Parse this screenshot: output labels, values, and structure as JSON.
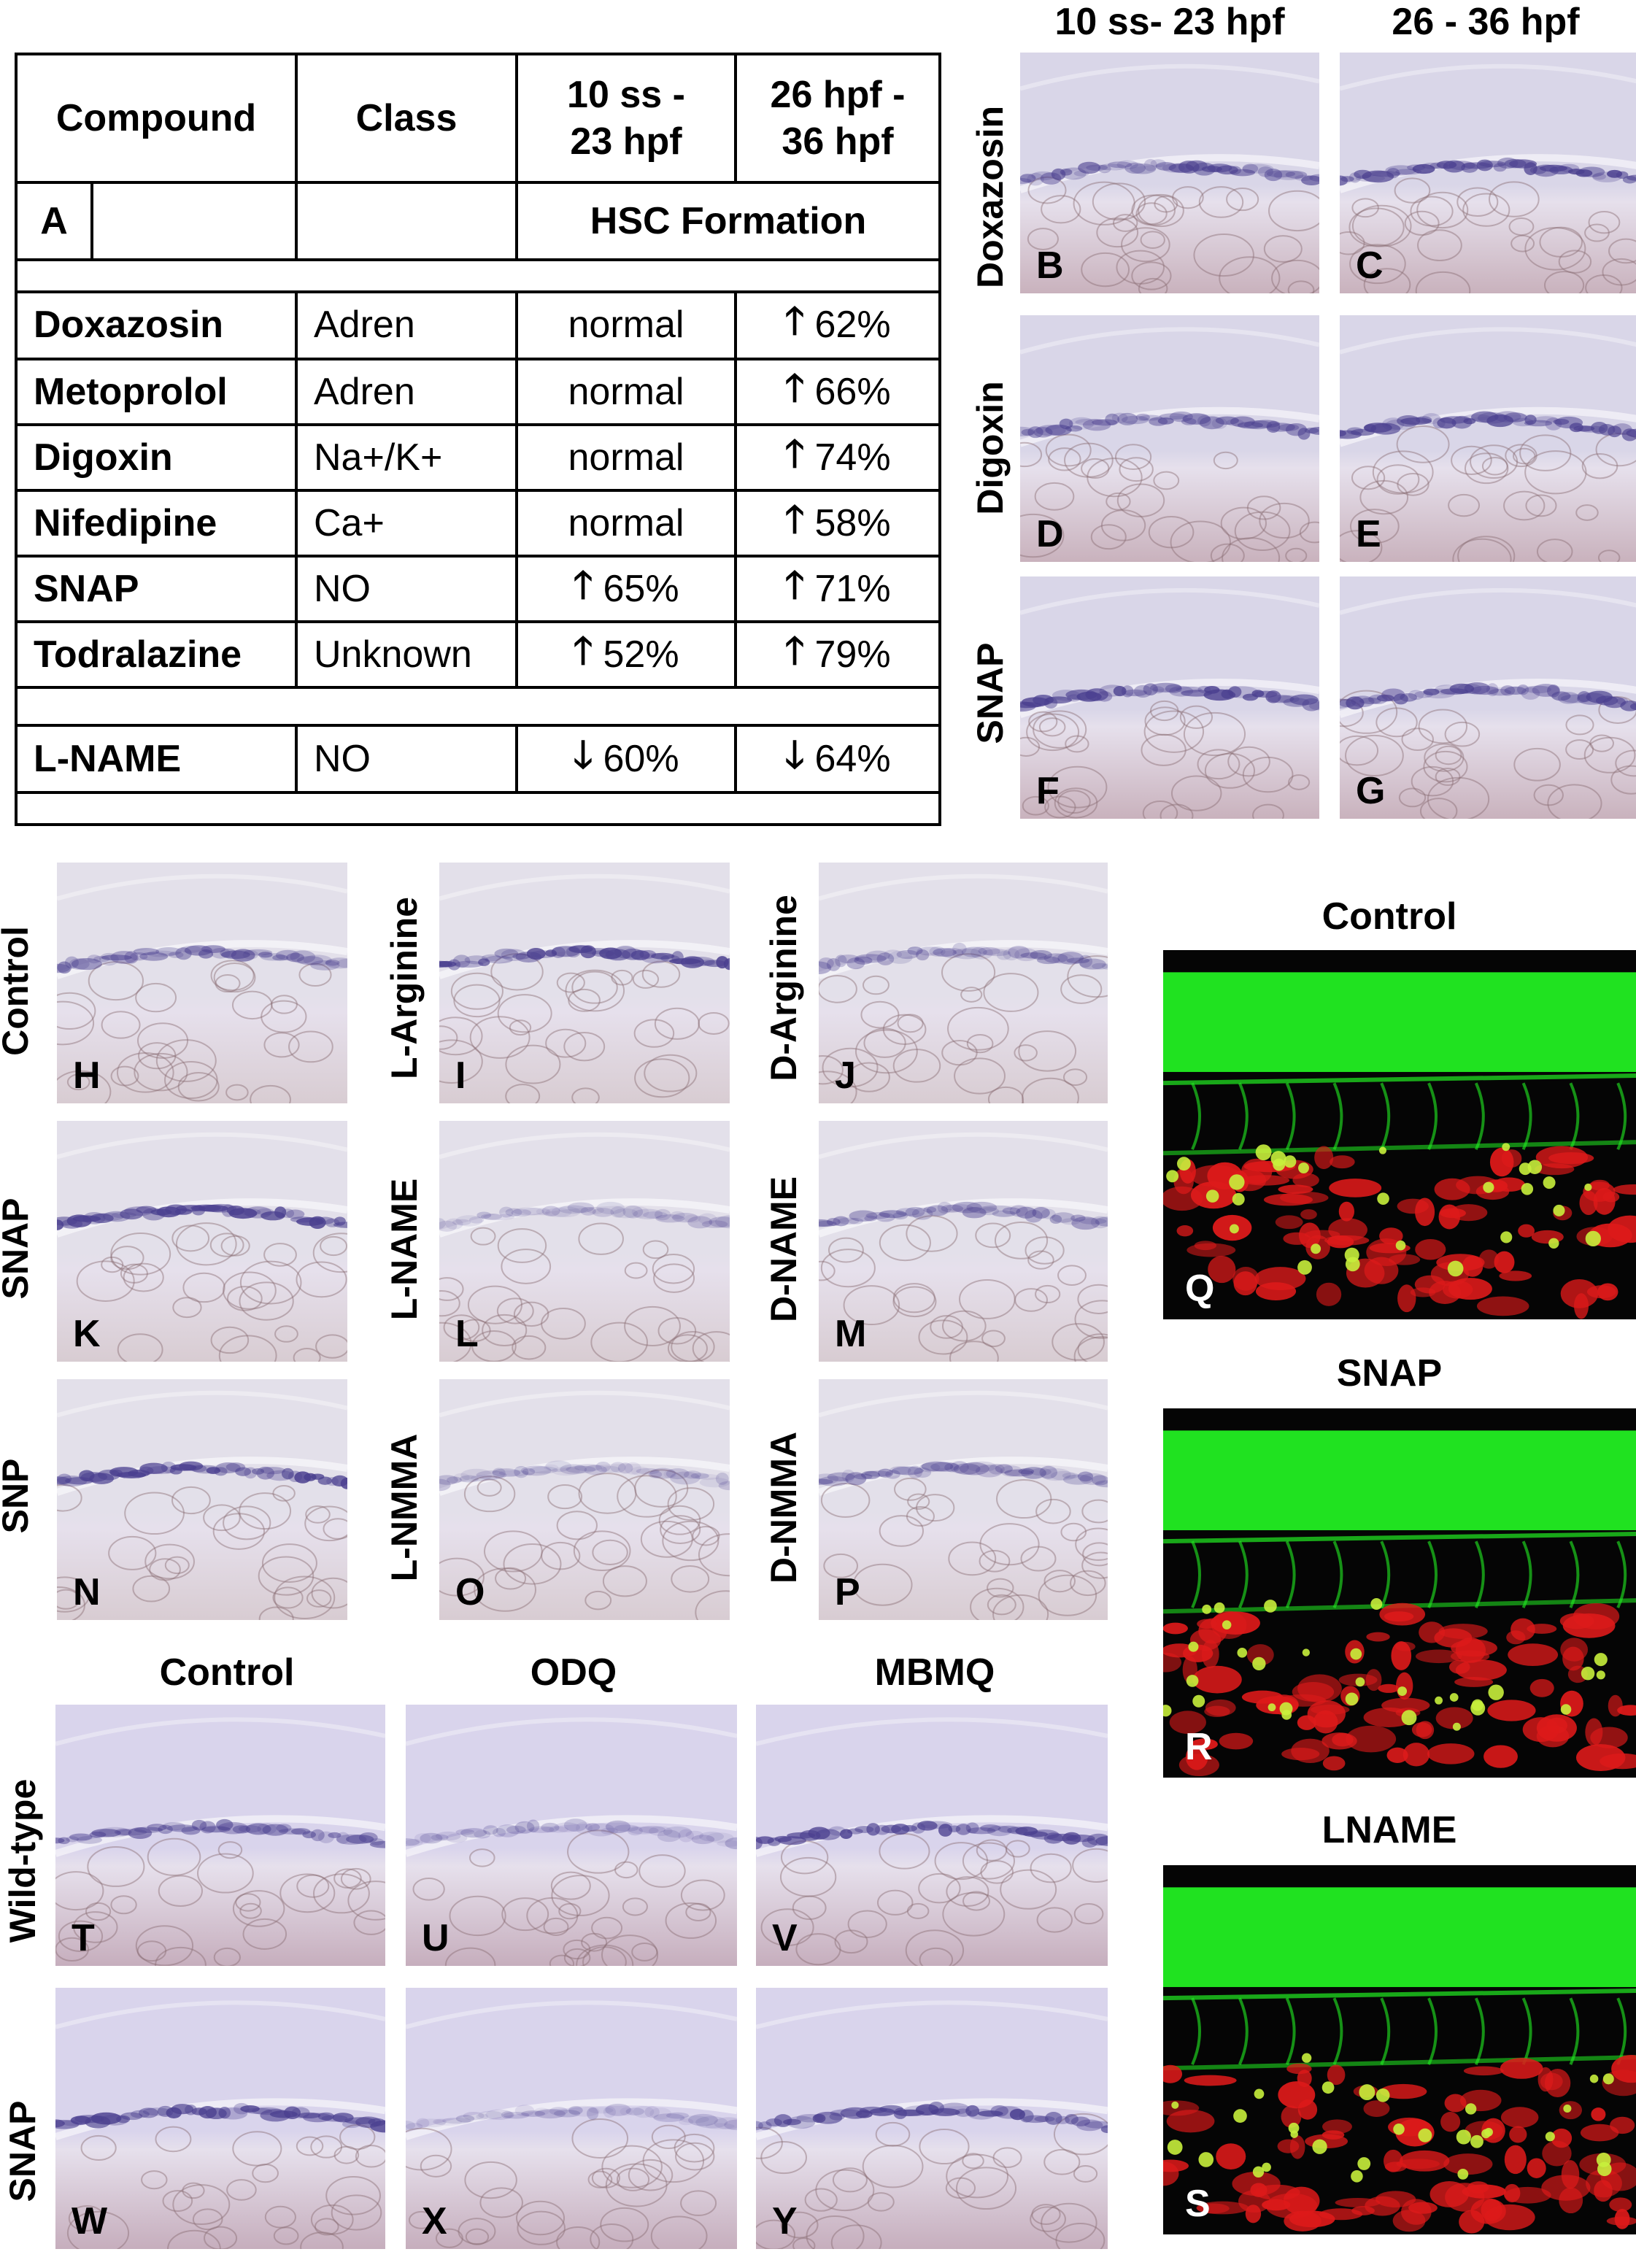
{
  "table": {
    "headers": {
      "compound": "Compound",
      "class": "Class",
      "period1": [
        "10 ss -",
        "23 hpf"
      ],
      "period2": [
        "26 hpf -",
        "36 hpf"
      ]
    },
    "panel_label": "A",
    "section_title": "HSC Formation",
    "rows": [
      {
        "compound": "Doxazosin",
        "class": "Adren",
        "p1": "normal",
        "p1_dir": "",
        "p2": "62%",
        "p2_dir": "up"
      },
      {
        "compound": "Metoprolol",
        "class": "Adren",
        "p1": "normal",
        "p1_dir": "",
        "p2": "66%",
        "p2_dir": "up"
      },
      {
        "compound": "Digoxin",
        "class": "Na+/K+",
        "p1": "normal",
        "p1_dir": "",
        "p2": "74%",
        "p2_dir": "up"
      },
      {
        "compound": "Nifedipine",
        "class": "Ca+",
        "p1": "normal",
        "p1_dir": "",
        "p2": "58%",
        "p2_dir": "up"
      },
      {
        "compound": "SNAP",
        "class": "NO",
        "p1": "65%",
        "p1_dir": "up",
        "p2": "71%",
        "p2_dir": "up"
      },
      {
        "compound": "Todralazine",
        "class": "Unknown",
        "p1": "52%",
        "p1_dir": "up",
        "p2": "79%",
        "p2_dir": "up"
      }
    ],
    "extra_row": {
      "compound": "L-NAME",
      "class": "NO",
      "p1": "60%",
      "p1_dir": "down",
      "p2": "64%",
      "p2_dir": "down"
    },
    "up_arrow": "🡑",
    "down_arrow": "🡓"
  },
  "top_right": {
    "col1": "10 ss- 23 hpf",
    "col2": "26 - 36 hpf",
    "rows": [
      "Doxazosin",
      "Digoxin",
      "SNAP"
    ],
    "labels": [
      "B",
      "C",
      "D",
      "E",
      "F",
      "G"
    ]
  },
  "middle_left": {
    "rows": [
      {
        "left": "Control",
        "mid": "L-Arginine",
        "right": "D-Arginine",
        "labels": [
          "H",
          "I",
          "J"
        ]
      },
      {
        "left": "SNAP",
        "mid": "L-NAME",
        "right": "D-NAME",
        "labels": [
          "K",
          "L",
          "M"
        ]
      },
      {
        "left": "SNP",
        "mid": "L-NMMA",
        "right": "D-NMMA",
        "labels": [
          "N",
          "O",
          "P"
        ]
      }
    ]
  },
  "bottom_left": {
    "cols": [
      "Control",
      "ODQ",
      "MBMQ"
    ],
    "rows": [
      "Wild-type",
      "SNAP"
    ],
    "labels": [
      "T",
      "U",
      "V",
      "W",
      "X",
      "Y"
    ]
  },
  "fluorescence": {
    "titles": [
      "Control",
      "SNAP",
      "LNAME"
    ],
    "labels": [
      "Q",
      "R",
      "S"
    ]
  },
  "colors": {
    "stain": "#4a3f8f",
    "tissue_top": "#d9d6e8",
    "tissue_bottom": "#c9b2bd",
    "green": "#22ee22",
    "red": "#dd1a1a"
  }
}
